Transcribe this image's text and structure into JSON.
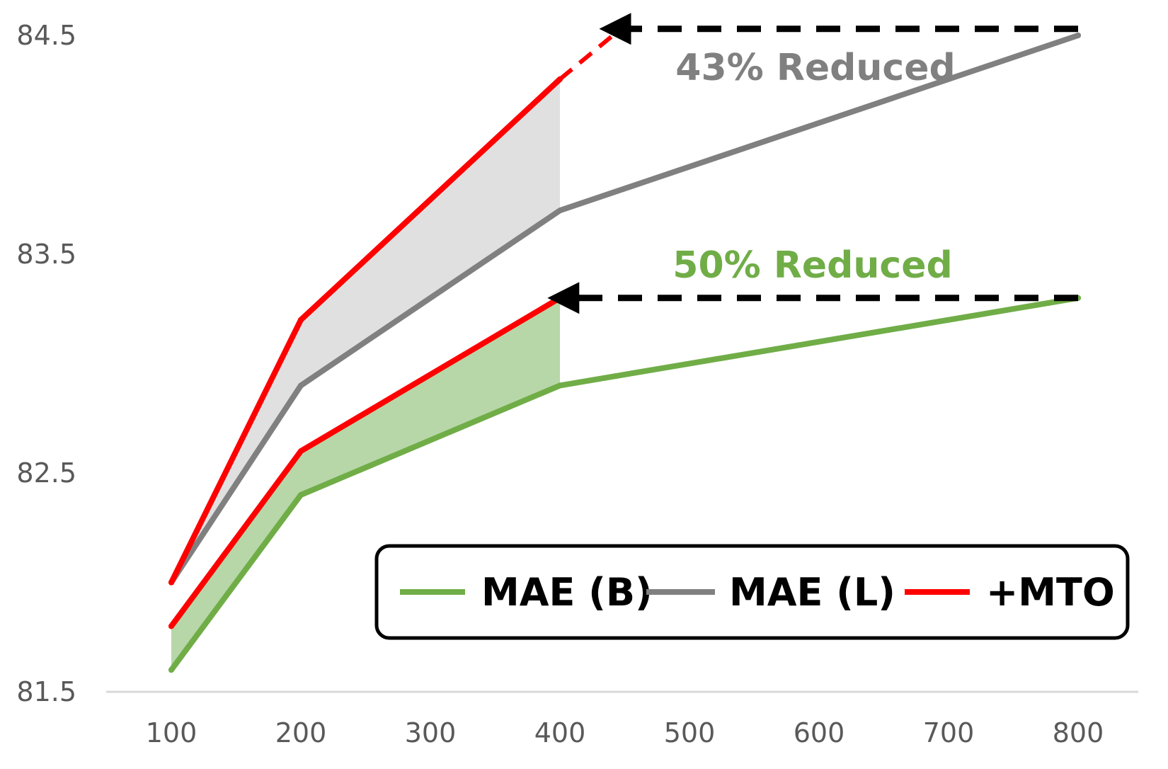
{
  "chart_data": {
    "type": "line",
    "title": "",
    "xlabel": "",
    "ylabel": "",
    "x": [
      100,
      200,
      400,
      800
    ],
    "xticks": [
      "100",
      "200",
      "300",
      "400",
      "500",
      "600",
      "700",
      "800"
    ],
    "xlim": [
      100,
      800
    ],
    "yticks": [
      "81.5",
      "82.5",
      "83.5",
      "84.5"
    ],
    "ylim": [
      81.5,
      84.5
    ],
    "grid": false,
    "legend_position": "bottom-right",
    "series": [
      {
        "name": "MAE (B)",
        "color": "#70ad47",
        "x": [
          100,
          200,
          400,
          800
        ],
        "values": [
          81.6,
          82.4,
          82.9,
          83.3
        ]
      },
      {
        "name": "MAE (L)",
        "color": "#808080",
        "x": [
          100,
          200,
          400,
          800
        ],
        "values": [
          82.0,
          82.9,
          83.7,
          84.5
        ]
      },
      {
        "name": "+MTO",
        "color": "#ff0000",
        "x": [
          100,
          200,
          400
        ],
        "values": [
          81.8,
          82.6,
          83.3
        ]
      },
      {
        "name": "+MTO",
        "color": "#ff0000",
        "x": [
          100,
          200,
          400
        ],
        "values": [
          82.0,
          83.2,
          84.3
        ]
      }
    ],
    "mto_extension": {
      "color": "#ff0000",
      "x": [
        400,
        445
      ],
      "values": [
        84.3,
        84.52
      ]
    },
    "shaded_regions": [
      {
        "color": "#b7d7a8",
        "x": [
          100,
          200,
          400
        ],
        "upper": [
          81.8,
          82.6,
          83.3
        ],
        "lower": [
          81.6,
          82.4,
          82.9
        ]
      },
      {
        "color": "#e0e0e0",
        "x": [
          100,
          200,
          400
        ],
        "upper": [
          82.0,
          83.2,
          84.3
        ],
        "lower": [
          82.0,
          82.9,
          83.7
        ]
      }
    ],
    "annotations": [
      {
        "text": "43% Reduced",
        "color": "#808080",
        "arrow_from": [
          800,
          84.53
        ],
        "arrow_to": [
          450,
          84.53
        ]
      },
      {
        "text": "50% Reduced",
        "color": "#70ad47",
        "arrow_from": [
          800,
          83.3
        ],
        "arrow_to": [
          410,
          83.3
        ]
      }
    ],
    "colors": {
      "axis": "#d9d9d9",
      "ticks": "#595959",
      "arrow": "#000000"
    }
  }
}
